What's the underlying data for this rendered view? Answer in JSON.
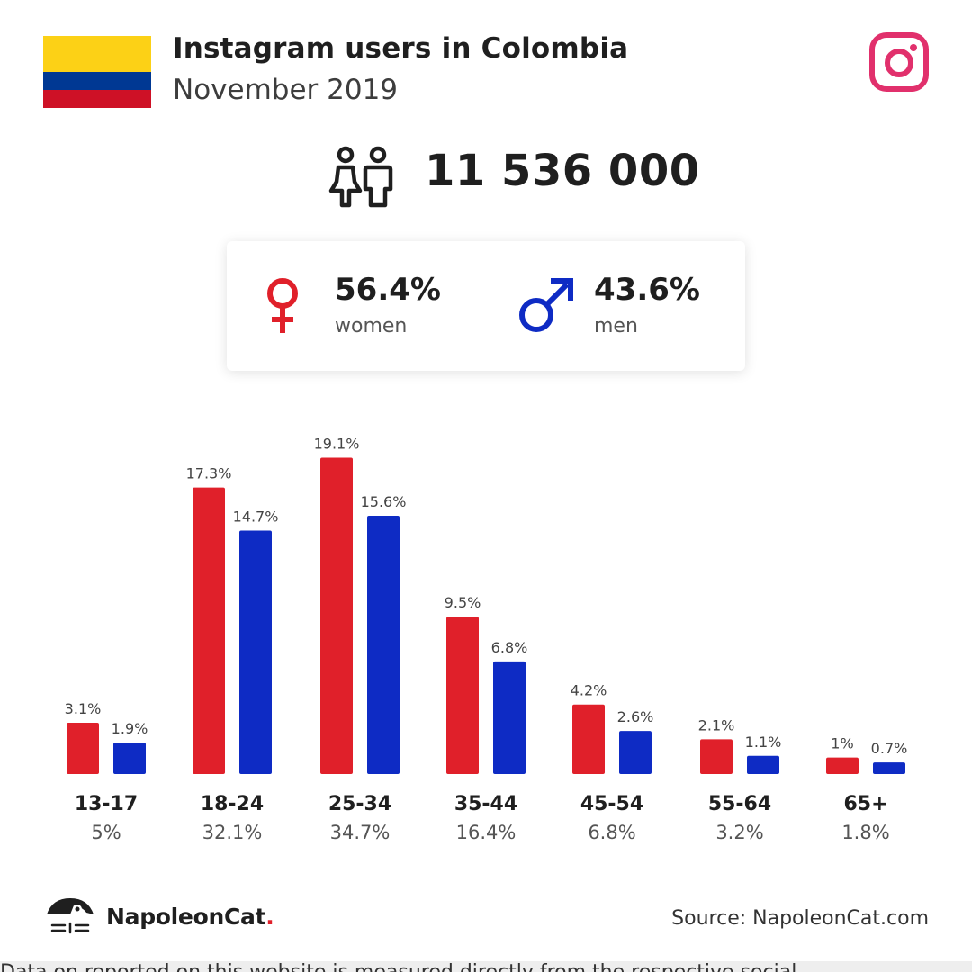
{
  "header": {
    "title": "Instagram users in Colombia",
    "subtitle": "November 2019"
  },
  "flag_colors": [
    "#fcd116",
    "#003893",
    "#ce1126"
  ],
  "total_users": "11 536 000",
  "gender": {
    "women": {
      "percent": "56.4%",
      "label": "women",
      "color": "#e0202a"
    },
    "men": {
      "percent": "43.6%",
      "label": "men",
      "color": "#0e2bc4"
    }
  },
  "chart_data": {
    "type": "bar",
    "categories": [
      "13-17",
      "18-24",
      "25-34",
      "35-44",
      "45-54",
      "55-64",
      "65+"
    ],
    "category_totals": [
      "5%",
      "32.1%",
      "34.7%",
      "16.4%",
      "6.8%",
      "3.2%",
      "1.8%"
    ],
    "series": [
      {
        "values": [
          3.1,
          17.3,
          19.1,
          9.5,
          4.2,
          2.1,
          1
        ],
        "labels": [
          "3.1%",
          "17.3%",
          "19.1%",
          "9.5%",
          "4.2%",
          "2.1%",
          "1%"
        ],
        "color": "#e0202a"
      },
      {
        "values": [
          1.9,
          14.7,
          15.6,
          6.8,
          2.6,
          1.1,
          0.7
        ],
        "labels": [
          "1.9%",
          "14.7%",
          "15.6%",
          "6.8%",
          "2.6%",
          "1.1%",
          "0.7%"
        ],
        "color": "#0e2bc4"
      }
    ]
  },
  "footer": {
    "brand": "NapoleonCat",
    "brand_dot": ".",
    "source": "Source: NapoleonCat.com",
    "note": "Data on reported on this website is measured directly from the respective social"
  },
  "icons": {
    "people": "people-icon",
    "instagram": "instagram-icon",
    "female": "female-symbol-icon",
    "male": "male-symbol-icon",
    "logo": "napoleoncat-logo-icon"
  }
}
